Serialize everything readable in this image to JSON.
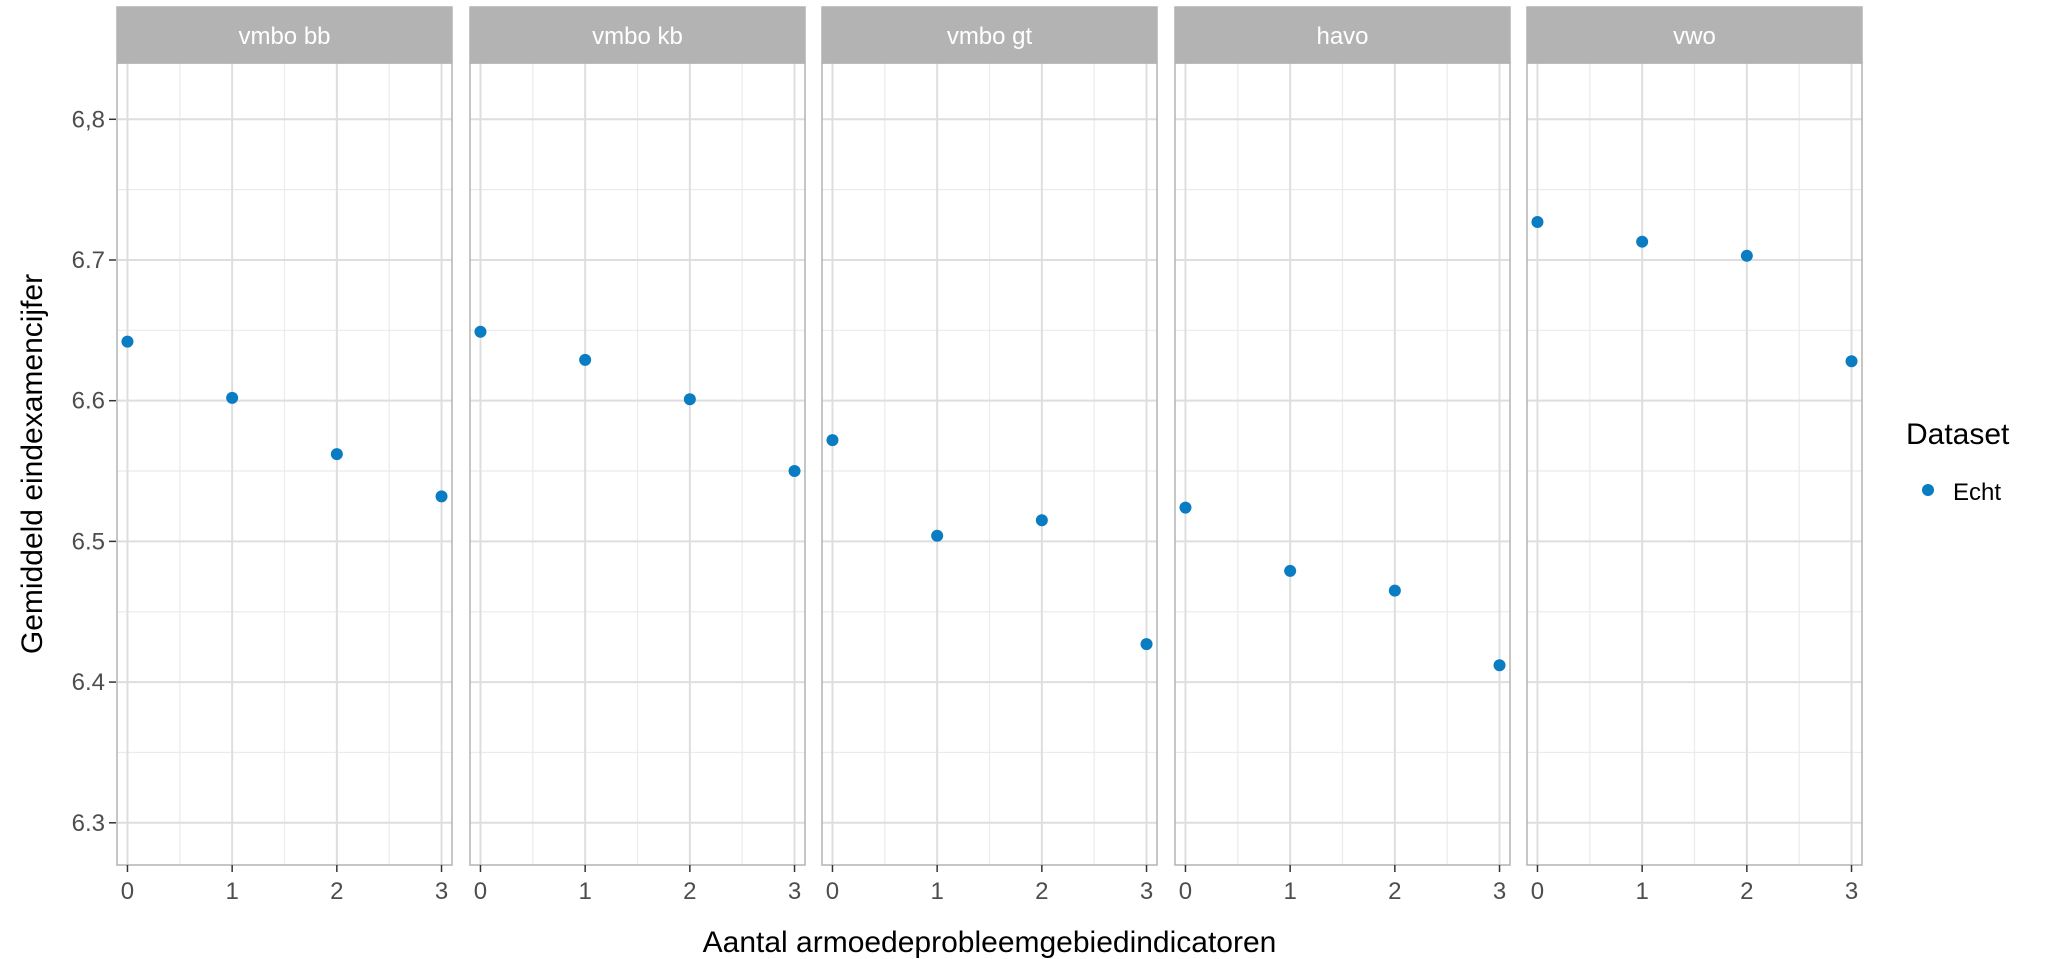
{
  "chart_data": {
    "type": "scatter",
    "xlabel": "Aantal armoedeprobleemgebiedindicatoren",
    "ylabel": "Gemiddeld eindexamencijfer",
    "ylim": [
      6.27,
      6.84
    ],
    "xlim": [
      -0.1,
      3.1
    ],
    "x_ticks": [
      0,
      1,
      2,
      3
    ],
    "x_tick_labels": [
      "0",
      "1",
      "2",
      "3"
    ],
    "y_ticks": [
      6.3,
      6.4,
      6.5,
      6.6,
      6.7,
      6.8
    ],
    "y_tick_labels": [
      "6.3",
      "6.4",
      "6.5",
      "6.6",
      "6.7",
      "6,8"
    ],
    "grid": true,
    "legend": {
      "title": "Dataset",
      "position": "right",
      "entries": [
        {
          "label": "Echt",
          "color": "#0A7CC1"
        }
      ]
    },
    "point_color": "#0A7CC1",
    "strip_color": "#B3B3B3",
    "facets": [
      {
        "name": "vmbo bb",
        "x": [
          0,
          1,
          2,
          3
        ],
        "y": [
          6.642,
          6.602,
          6.562,
          6.532
        ]
      },
      {
        "name": "vmbo kb",
        "x": [
          0,
          1,
          2,
          3
        ],
        "y": [
          6.649,
          6.629,
          6.601,
          6.55
        ]
      },
      {
        "name": "vmbo gt",
        "x": [
          0,
          1,
          2,
          3
        ],
        "y": [
          6.572,
          6.504,
          6.515,
          6.427
        ]
      },
      {
        "name": "havo",
        "x": [
          0,
          1,
          2,
          3
        ],
        "y": [
          6.524,
          6.479,
          6.465,
          6.412
        ]
      },
      {
        "name": "vwo",
        "x": [
          0,
          1,
          2,
          3
        ],
        "y": [
          6.727,
          6.713,
          6.703,
          6.628
        ]
      }
    ]
  }
}
